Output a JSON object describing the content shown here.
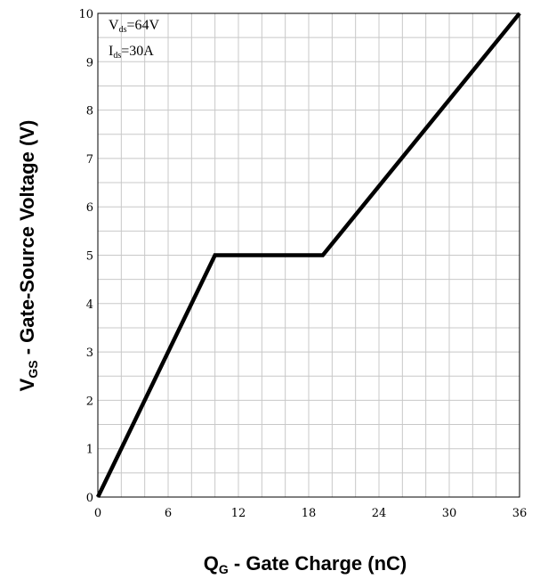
{
  "chart_data": {
    "type": "line",
    "xlabel": {
      "main": "Q",
      "sub": "G",
      "rest": " - Gate Charge (nC)"
    },
    "ylabel": {
      "main": "V",
      "sub": "GS",
      "rest": " - Gate-Source Voltage (V)"
    },
    "xlim": [
      0,
      36
    ],
    "ylim": [
      0,
      10
    ],
    "xticks": [
      0,
      6,
      12,
      18,
      24,
      30,
      36
    ],
    "yticks": [
      0,
      1,
      2,
      3,
      4,
      5,
      6,
      7,
      8,
      9,
      10
    ],
    "x_minor_step": 2,
    "y_minor_step": 0.5,
    "grid": true,
    "annotations": [
      {
        "main": "V",
        "sub": "ds",
        "rest": "=64V"
      },
      {
        "main": "I",
        "sub": "ds",
        "rest": "=30A"
      }
    ],
    "series": [
      {
        "x": [
          0,
          10,
          19.2,
          36
        ],
        "y": [
          0,
          5,
          5,
          10
        ],
        "color": "#000000"
      }
    ]
  }
}
